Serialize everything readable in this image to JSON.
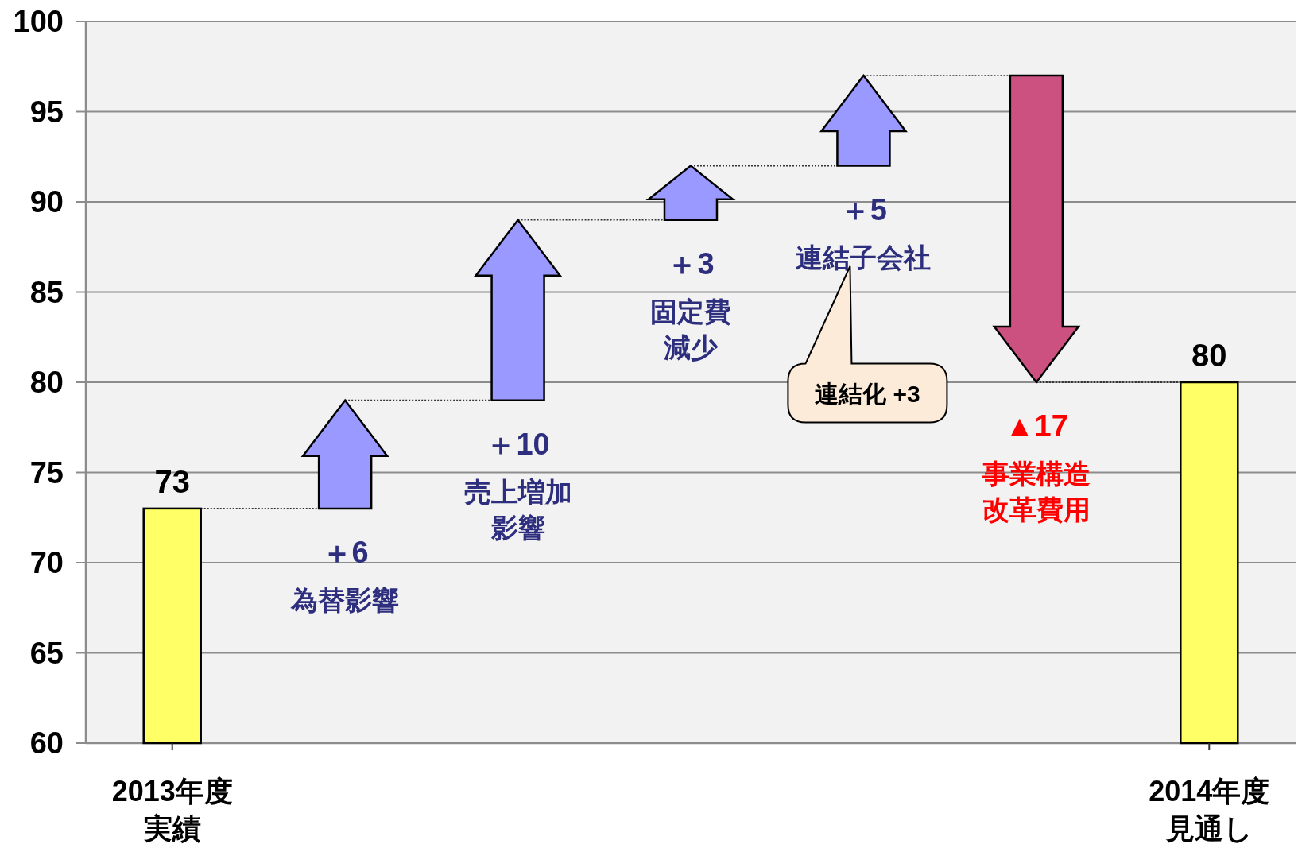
{
  "chart_data": {
    "type": "bar",
    "categories": [
      "2013年度実績",
      "為替影響",
      "売上増加影響",
      "固定費減少",
      "連結子会社",
      "事業構造改革費用",
      "2014年度見通し"
    ],
    "values": [
      73,
      6,
      10,
      3,
      5,
      -17,
      80
    ],
    "base": [
      null,
      73,
      79,
      89,
      92,
      97,
      null
    ],
    "colors": [
      "#ffff66",
      "#9999ff",
      "#9999ff",
      "#9999ff",
      "#9999ff",
      "#cc5080",
      "#ffff66"
    ],
    "value_labels": [
      "73",
      "＋6",
      "＋10",
      "＋3",
      "＋5",
      "▲17",
      "80"
    ],
    "ylim": [
      60,
      100
    ],
    "yticks": [
      60,
      65,
      70,
      75,
      80,
      85,
      90,
      95,
      100
    ],
    "grid": "y",
    "annotations": [
      "連結化 +3"
    ]
  }
}
